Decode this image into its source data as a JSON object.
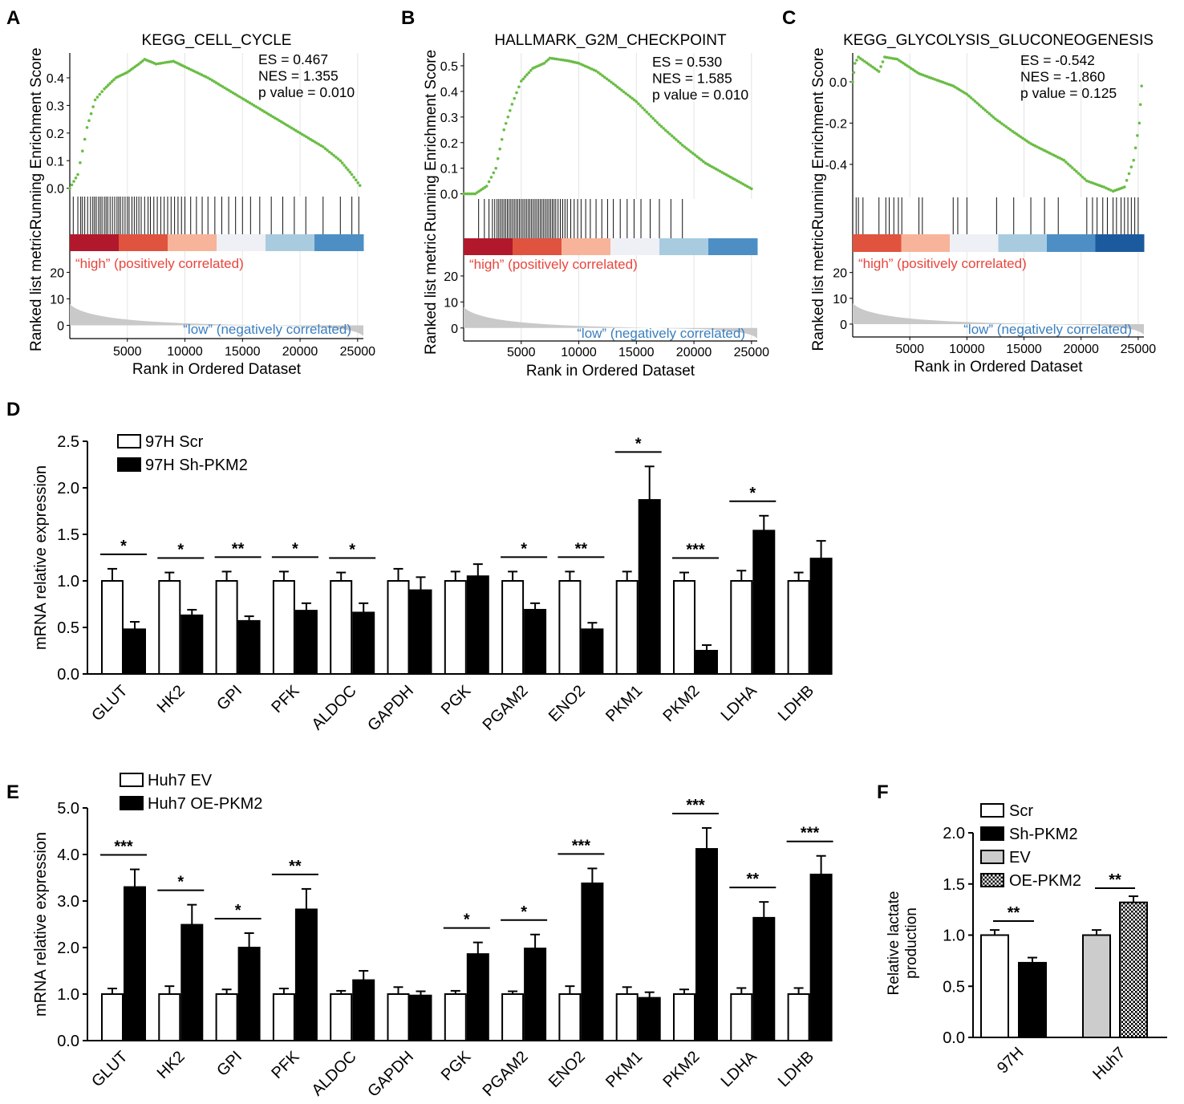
{
  "figure": {
    "colors": {
      "curve": "#6abd45",
      "hit": "#111111",
      "gray": "#c9c9c9",
      "high_text": "#e8453c",
      "low_text": "#3a7fc0",
      "red_dark": "#b2182b",
      "blue_dark": "#2166ac",
      "white": "#f7f7f7",
      "ev_fill": "#cccccc",
      "black": "#000000"
    }
  },
  "chart_data": [
    {
      "id": "A",
      "panel_label": "A",
      "type": "scatter",
      "title": "KEGG_CELL_CYCLE",
      "stats": [
        "ES = 0.467",
        "NES = 1.355",
        "p value = 0.010"
      ],
      "ylabel_top": "Running Enrichment Score",
      "ylabel_bottom": "Ranked list metric",
      "xlabel": "Rank in Ordered Dataset",
      "xticks": [
        "5000",
        "10000",
        "15000",
        "20000",
        "25000"
      ],
      "yticks": [
        "0.0",
        "0.1",
        "0.2",
        "0.3",
        "0.4"
      ],
      "ylim": [
        -0.03,
        0.49
      ],
      "metric_ticks": [
        "0",
        "10",
        "20"
      ],
      "metric_ylim": [
        -5,
        28
      ],
      "high_label": "“high” (positively correlated)",
      "low_label": "“low” (negatively correlated)",
      "curve": [
        [
          0,
          0
        ],
        [
          700,
          0.05
        ],
        [
          1500,
          0.22
        ],
        [
          2200,
          0.32
        ],
        [
          3000,
          0.36
        ],
        [
          4000,
          0.4
        ],
        [
          5000,
          0.42
        ],
        [
          6000,
          0.45
        ],
        [
          6500,
          0.467
        ],
        [
          7500,
          0.45
        ],
        [
          9000,
          0.46
        ],
        [
          10000,
          0.44
        ],
        [
          12000,
          0.4
        ],
        [
          14000,
          0.35
        ],
        [
          16000,
          0.3
        ],
        [
          18000,
          0.25
        ],
        [
          20000,
          0.2
        ],
        [
          22000,
          0.15
        ],
        [
          23500,
          0.1
        ],
        [
          24500,
          0.05
        ],
        [
          25200,
          0.01
        ]
      ],
      "hits": [
        300,
        700,
        950,
        1100,
        1300,
        1550,
        1800,
        2000,
        2150,
        2300,
        2500,
        2650,
        2800,
        3000,
        3150,
        3300,
        3500,
        3700,
        3900,
        4100,
        4250,
        4400,
        4600,
        4800,
        5000,
        5150,
        5400,
        5600,
        5800,
        6000,
        6200,
        6500,
        6800,
        7000,
        7300,
        7600,
        7900,
        8200,
        8500,
        8800,
        9100,
        9400,
        9700,
        10000,
        10500,
        11000,
        11500,
        12000,
        12600,
        13200,
        13800,
        14400,
        15000,
        15700,
        16500,
        17500,
        18500,
        19500,
        20500,
        22000,
        23500,
        24500,
        25100
      ],
      "xlim": [
        0,
        25500
      ],
      "heat_zones": [
        "dark_red",
        "red",
        "light_red",
        "white",
        "light_blue",
        "blue"
      ]
    },
    {
      "id": "B",
      "panel_label": "B",
      "type": "scatter",
      "title": "HALLMARK_G2M_CHECKPOINT",
      "stats": [
        "ES = 0.530",
        "NES = 1.585",
        "p value = 0.010"
      ],
      "ylabel_top": "Running Enrichment Score",
      "ylabel_bottom": "Ranked list metric",
      "xlabel": "Rank in Ordered Dataset",
      "xticks": [
        "5000",
        "10000",
        "15000",
        "20000",
        "25000"
      ],
      "yticks": [
        "0.0",
        "0.1",
        "0.2",
        "0.3",
        "0.4",
        "0.5"
      ],
      "ylim": [
        -0.02,
        0.55
      ],
      "metric_ticks": [
        "0",
        "10",
        "20"
      ],
      "metric_ylim": [
        -5,
        28
      ],
      "high_label": "“high” (positively correlated)",
      "low_label": "“low” (negatively correlated)",
      "curve": [
        [
          0,
          0
        ],
        [
          1000,
          0.0
        ],
        [
          2000,
          0.03
        ],
        [
          2800,
          0.1
        ],
        [
          3500,
          0.25
        ],
        [
          4200,
          0.35
        ],
        [
          5000,
          0.44
        ],
        [
          6000,
          0.49
        ],
        [
          7000,
          0.51
        ],
        [
          7500,
          0.53
        ],
        [
          9000,
          0.52
        ],
        [
          10000,
          0.51
        ],
        [
          11500,
          0.48
        ],
        [
          13000,
          0.43
        ],
        [
          15000,
          0.36
        ],
        [
          17000,
          0.27
        ],
        [
          19000,
          0.19
        ],
        [
          21000,
          0.12
        ],
        [
          23000,
          0.07
        ],
        [
          25000,
          0.02
        ]
      ],
      "hits": [
        1300,
        1800,
        2200,
        2500,
        2700,
        2900,
        3050,
        3200,
        3350,
        3500,
        3650,
        3800,
        3950,
        4100,
        4250,
        4400,
        4550,
        4700,
        4850,
        5000,
        5150,
        5300,
        5450,
        5600,
        5750,
        5900,
        6050,
        6200,
        6350,
        6500,
        6650,
        6800,
        6950,
        7100,
        7250,
        7400,
        7550,
        7700,
        7850,
        8000,
        8200,
        8400,
        8600,
        8800,
        9000,
        9300,
        9600,
        9900,
        10200,
        10600,
        11000,
        11500,
        12000,
        12500,
        13000,
        13600,
        14200,
        14800,
        15400,
        16200,
        17000,
        18000,
        19000
      ],
      "xlim": [
        0,
        25500
      ],
      "heat_zones": [
        "dark_red",
        "red",
        "light_red",
        "white",
        "light_blue",
        "blue"
      ]
    },
    {
      "id": "C",
      "panel_label": "C",
      "type": "scatter",
      "title": "KEGG_GLYCOLYSIS_GLUCONEOGENESIS",
      "stats": [
        "ES = -0.542",
        "NES = -1.860",
        "p value = 0.125"
      ],
      "ylabel_top": "Running Enrichment Score",
      "ylabel_bottom": "Ranked list metric",
      "xlabel": "Rank in Ordered Dataset",
      "xticks": [
        "5000",
        "10000",
        "15000",
        "20000",
        "25000"
      ],
      "yticks": [
        "0.0",
        "-0.2",
        "-0.4"
      ],
      "ylim": [
        -0.56,
        0.14
      ],
      "metric_ticks": [
        "0",
        "10",
        "20"
      ],
      "metric_ylim": [
        -5,
        28
      ],
      "high_label": "“high” (positively correlated)",
      "low_label": "“low” (negatively correlated)",
      "curve": [
        [
          0,
          0
        ],
        [
          200,
          0.09
        ],
        [
          500,
          0.12
        ],
        [
          2300,
          0.05
        ],
        [
          2800,
          0.12
        ],
        [
          3900,
          0.11
        ],
        [
          5800,
          0.04
        ],
        [
          8800,
          -0.02
        ],
        [
          10000,
          -0.06
        ],
        [
          12500,
          -0.18
        ],
        [
          14000,
          -0.24
        ],
        [
          15600,
          -0.3
        ],
        [
          18500,
          -0.38
        ],
        [
          20500,
          -0.48
        ],
        [
          22000,
          -0.51
        ],
        [
          22800,
          -0.53
        ],
        [
          23800,
          -0.51
        ],
        [
          24600,
          -0.38
        ],
        [
          25100,
          -0.2
        ],
        [
          25300,
          -0.02
        ]
      ],
      "hits": [
        300,
        500,
        900,
        2300,
        2900,
        3200,
        3600,
        4000,
        4300,
        5800,
        6100,
        8800,
        9200,
        10000,
        12600,
        14100,
        15600,
        16800,
        18000,
        20500,
        21000,
        21400,
        21900,
        22300,
        22800,
        23100,
        23500,
        23800,
        24100,
        24400,
        24700,
        25000
      ],
      "xlim": [
        0,
        25500
      ],
      "heat_zones": [
        "red",
        "light_red",
        "white",
        "light_blue",
        "blue",
        "dark_blue"
      ]
    },
    {
      "id": "D",
      "panel_label": "D",
      "type": "bar",
      "ylabel": "mRNA relative expression",
      "ylim": [
        0,
        2.5
      ],
      "yticks": [
        "0.0",
        "0.5",
        "1.0",
        "1.5",
        "2.0",
        "2.5"
      ],
      "categories": [
        "GLUT",
        "HK2",
        "GPI",
        "PFK",
        "ALDOC",
        "GAPDH",
        "PGK",
        "PGAM2",
        "ENO2",
        "PKM1",
        "PKM2",
        "LDHA",
        "LDHB"
      ],
      "series": [
        {
          "name": "97H Scr",
          "style": "white",
          "values": [
            1.0,
            1.0,
            1.0,
            1.0,
            1.0,
            1.0,
            1.0,
            1.0,
            1.0,
            1.0,
            1.0,
            1.0,
            1.0
          ],
          "errors": [
            0.13,
            0.09,
            0.1,
            0.1,
            0.09,
            0.13,
            0.1,
            0.1,
            0.1,
            0.1,
            0.09,
            0.11,
            0.09
          ]
        },
        {
          "name": "97H Sh-PKM2",
          "style": "black",
          "values": [
            0.48,
            0.63,
            0.57,
            0.68,
            0.66,
            0.9,
            1.05,
            0.69,
            0.48,
            1.87,
            0.25,
            1.54,
            1.24
          ],
          "errors": [
            0.08,
            0.06,
            0.05,
            0.08,
            0.1,
            0.14,
            0.13,
            0.07,
            0.07,
            0.36,
            0.06,
            0.16,
            0.19
          ]
        }
      ],
      "significance": [
        "*",
        "*",
        "**",
        "*",
        "*",
        "",
        "",
        "*",
        "**",
        "*",
        "***",
        "*",
        ""
      ]
    },
    {
      "id": "E",
      "panel_label": "E",
      "type": "bar",
      "ylabel": "mRNA relative expression",
      "ylim": [
        0,
        5.0
      ],
      "yticks": [
        "0.0",
        "1.0",
        "2.0",
        "3.0",
        "4.0",
        "5.0"
      ],
      "categories": [
        "GLUT",
        "HK2",
        "GPI",
        "PFK",
        "ALDOC",
        "GAPDH",
        "PGK",
        "PGAM2",
        "ENO2",
        "PKM1",
        "PKM2",
        "LDHA",
        "LDHB"
      ],
      "series": [
        {
          "name": "Huh7 EV",
          "style": "white",
          "values": [
            1.0,
            1.0,
            1.0,
            1.0,
            1.0,
            1.0,
            1.0,
            1.0,
            1.0,
            1.0,
            1.0,
            1.0,
            1.0
          ],
          "errors": [
            0.12,
            0.17,
            0.1,
            0.12,
            0.07,
            0.15,
            0.07,
            0.06,
            0.17,
            0.15,
            0.1,
            0.13,
            0.13
          ]
        },
        {
          "name": "Huh7 OE-PKM2",
          "style": "black",
          "values": [
            3.3,
            2.49,
            2.0,
            2.82,
            1.3,
            0.97,
            1.86,
            1.98,
            3.38,
            0.92,
            4.12,
            2.64,
            3.57
          ],
          "errors": [
            0.38,
            0.43,
            0.31,
            0.44,
            0.2,
            0.09,
            0.25,
            0.3,
            0.32,
            0.12,
            0.45,
            0.34,
            0.4
          ]
        }
      ],
      "significance": [
        "***",
        "*",
        "*",
        "**",
        "",
        "",
        "*",
        "*",
        "***",
        "",
        "***",
        "**",
        "***"
      ]
    },
    {
      "id": "F",
      "panel_label": "F",
      "type": "bar",
      "ylabel": "Relative lactate production",
      "ylim": [
        0,
        2.0
      ],
      "yticks": [
        "0.0",
        "0.5",
        "1.0",
        "1.5",
        "2.0"
      ],
      "categories": [
        "97H",
        "Huh7"
      ],
      "series": [
        {
          "name": "Scr",
          "style": "white",
          "group": 0,
          "value": 1.0,
          "error": 0.05
        },
        {
          "name": "Sh-PKM2",
          "style": "black",
          "group": 0,
          "value": 0.73,
          "error": 0.05
        },
        {
          "name": "EV",
          "style": "gray",
          "group": 1,
          "value": 1.0,
          "error": 0.05
        },
        {
          "name": "OE-PKM2",
          "style": "hatch",
          "group": 1,
          "value": 1.32,
          "error": 0.06
        }
      ],
      "significance": [
        "**",
        "**"
      ]
    }
  ]
}
